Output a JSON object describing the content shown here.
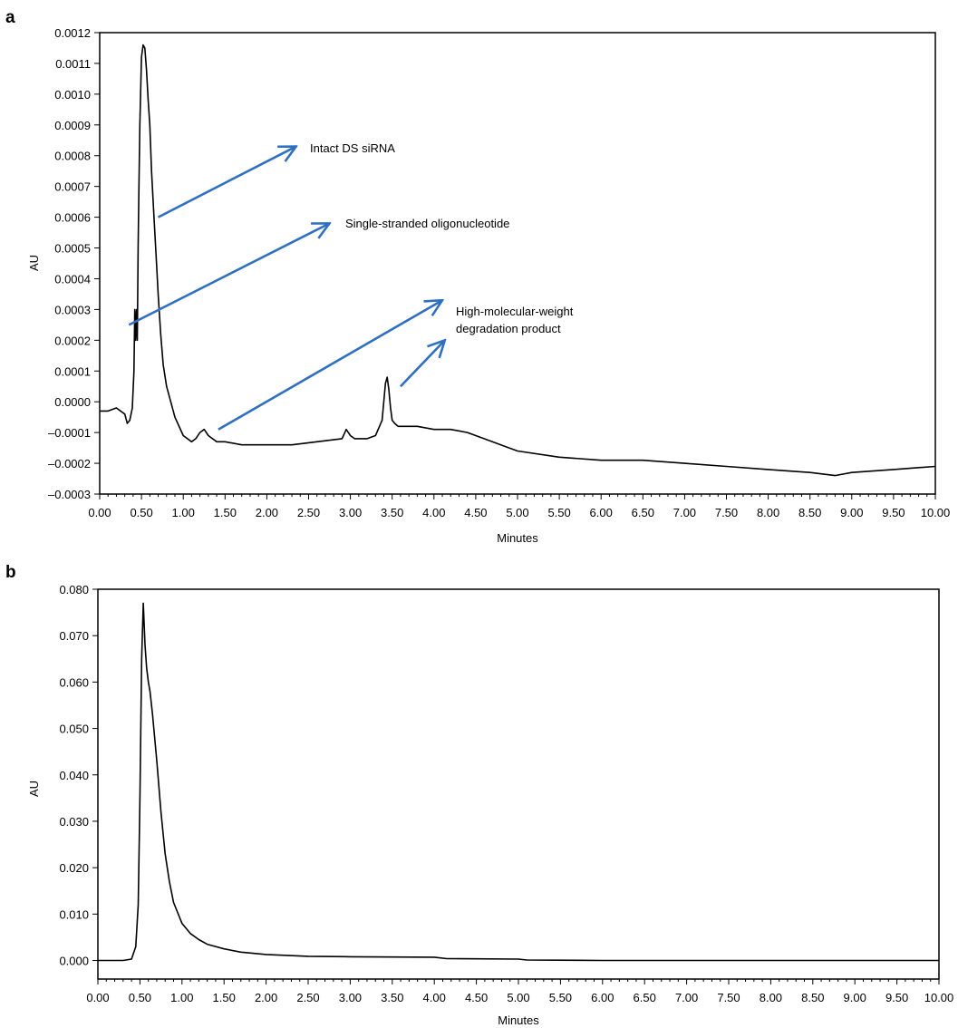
{
  "colors": {
    "trace": "#000000",
    "arrow": "#2f6fc2",
    "frame": "#000000",
    "background": "#ffffff"
  },
  "chart_data": [
    {
      "panel": "a",
      "type": "line",
      "xlabel": "Minutes",
      "ylabel": "AU",
      "xlim": [
        0,
        10
      ],
      "ylim": [
        -0.0003,
        0.0012
      ],
      "grid": false,
      "x_ticks": [
        "0.00",
        "0.50",
        "1.00",
        "1.50",
        "2.00",
        "2.50",
        "3.00",
        "3.50",
        "4.00",
        "4.50",
        "5.00",
        "5.50",
        "6.00",
        "6.50",
        "7.00",
        "7.50",
        "8.00",
        "8.50",
        "9.00",
        "9.50",
        "10.00"
      ],
      "y_ticks": [
        "-0.0003",
        "-0.0002",
        "-0.0001",
        "0.0000",
        "0.0001",
        "0.0002",
        "0.0003",
        "0.0004",
        "0.0005",
        "0.0006",
        "0.0007",
        "0.0008",
        "0.0009",
        "0.0010",
        "0.0011",
        "0.0012"
      ],
      "series": [
        {
          "x": [
            0,
            0.1,
            0.2,
            0.3,
            0.33,
            0.36,
            0.39,
            0.41,
            0.42,
            0.43,
            0.44,
            0.45,
            0.46,
            0.47,
            0.48,
            0.5,
            0.52,
            0.54,
            0.56,
            0.58,
            0.6,
            0.62,
            0.65,
            0.68,
            0.7,
            0.73,
            0.76,
            0.8,
            0.85,
            0.9,
            1.0,
            1.1,
            1.15,
            1.2,
            1.25,
            1.3,
            1.4,
            1.5,
            1.7,
            2.0,
            2.3,
            2.6,
            2.9,
            2.95,
            3.0,
            3.05,
            3.1,
            3.2,
            3.3,
            3.38,
            3.42,
            3.44,
            3.46,
            3.48,
            3.5,
            3.53,
            3.57,
            3.65,
            3.8,
            4.0,
            4.2,
            4.4,
            4.6,
            4.8,
            5.0,
            5.5,
            6.0,
            6.5,
            7.0,
            7.5,
            8.0,
            8.5,
            8.8,
            9.0,
            9.5,
            10.0
          ],
          "y": [
            -3e-05,
            -3e-05,
            -2e-05,
            -4e-05,
            -7e-05,
            -6e-05,
            -2e-05,
            0.0001,
            0.0003,
            0.0002,
            0.0003,
            0.0002,
            0.0005,
            0.0007,
            0.0009,
            0.00112,
            0.00116,
            0.00115,
            0.00108,
            0.00098,
            0.0009,
            0.00075,
            0.0006,
            0.00045,
            0.00035,
            0.00022,
            0.00012,
            5e-05,
            0.0,
            -5e-05,
            -0.00011,
            -0.00013,
            -0.00012,
            -0.0001,
            -9e-05,
            -0.00011,
            -0.00013,
            -0.00013,
            -0.00014,
            -0.00014,
            -0.00014,
            -0.00013,
            -0.00012,
            -9e-05,
            -0.00011,
            -0.00012,
            -0.00012,
            -0.00012,
            -0.00011,
            -6e-05,
            6e-05,
            8e-05,
            4e-05,
            -2e-05,
            -6e-05,
            -7e-05,
            -8e-05,
            -8e-05,
            -8e-05,
            -9e-05,
            -9e-05,
            -0.0001,
            -0.00012,
            -0.00014,
            -0.00016,
            -0.00018,
            -0.00019,
            -0.00019,
            -0.0002,
            -0.00021,
            -0.00022,
            -0.00023,
            -0.00024,
            -0.00023,
            -0.00022,
            -0.00021
          ]
        }
      ],
      "annotations": [
        {
          "text": "Intact DS siRNA",
          "from": [
            0.7,
            0.0006
          ],
          "to": [
            2.35,
            0.00083
          ]
        },
        {
          "text": "Single-stranded oligonucleotide",
          "from": [
            0.35,
            0.00025
          ],
          "to": [
            2.75,
            0.00058
          ]
        },
        {
          "text_lines": [
            "High-molecular-weight",
            "degradation product"
          ],
          "from": [
            1.42,
            -9e-05
          ],
          "to": [
            4.1,
            0.00033
          ]
        },
        {
          "from": [
            3.6,
            5e-05
          ],
          "to": [
            4.13,
            0.0002
          ]
        }
      ]
    },
    {
      "panel": "b",
      "type": "line",
      "xlabel": "Minutes",
      "ylabel": "AU",
      "xlim": [
        0,
        10
      ],
      "ylim": [
        -0.004,
        0.08
      ],
      "grid": false,
      "x_ticks": [
        "0.00",
        "0.50",
        "1.00",
        "1.50",
        "2.00",
        "2.50",
        "3.00",
        "3.50",
        "4.00",
        "4.50",
        "5.00",
        "5.50",
        "6.00",
        "6.50",
        "7.00",
        "7.50",
        "8.00",
        "8.50",
        "9.00",
        "9.50",
        "10.00"
      ],
      "y_ticks": [
        "0.000",
        "0.010",
        "0.020",
        "0.030",
        "0.040",
        "0.050",
        "0.060",
        "0.070",
        "0.080"
      ],
      "series": [
        {
          "x": [
            0,
            0.3,
            0.4,
            0.45,
            0.48,
            0.5,
            0.52,
            0.54,
            0.56,
            0.58,
            0.6,
            0.62,
            0.65,
            0.7,
            0.75,
            0.8,
            0.85,
            0.9,
            1.0,
            1.1,
            1.2,
            1.3,
            1.5,
            1.7,
            2.0,
            2.5,
            3.0,
            4.0,
            4.15,
            5.0,
            5.1,
            6.0,
            8.0,
            10.0
          ],
          "y": [
            0,
            0,
            0.0003,
            0.003,
            0.012,
            0.035,
            0.065,
            0.077,
            0.068,
            0.063,
            0.06,
            0.058,
            0.053,
            0.043,
            0.032,
            0.023,
            0.017,
            0.0125,
            0.008,
            0.0058,
            0.0045,
            0.0035,
            0.0025,
            0.0018,
            0.0013,
            0.0009,
            0.0008,
            0.0007,
            0.0004,
            0.0003,
            0.0001,
            0.0,
            0.0,
            0.0
          ]
        }
      ]
    }
  ]
}
